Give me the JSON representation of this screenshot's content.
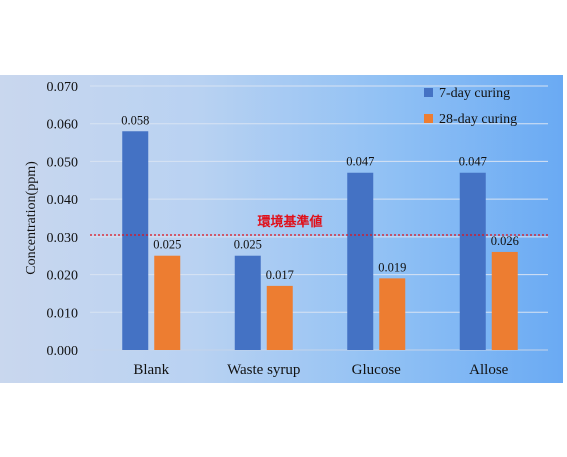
{
  "chart_data": {
    "type": "bar",
    "ylabel": "Concentration(ppm)",
    "xlabel": "",
    "ylim": [
      0,
      0.07
    ],
    "yticks": [
      "0.000",
      "0.010",
      "0.020",
      "0.030",
      "0.040",
      "0.050",
      "0.060",
      "0.070"
    ],
    "categories": [
      "Blank",
      "Waste syrup",
      "Glucose",
      "Allose"
    ],
    "series": [
      {
        "name": "7-day curing",
        "values": [
          0.058,
          0.025,
          0.047,
          0.047
        ],
        "labels": [
          "0.058",
          "0.025",
          "0.047",
          "0.047"
        ],
        "color": "#4472c4"
      },
      {
        "name": "28-day curing",
        "values": [
          0.025,
          0.017,
          0.019,
          0.026
        ],
        "labels": [
          "0.025",
          "0.017",
          "0.019",
          "0.026"
        ],
        "color": "#ed7d31"
      }
    ],
    "reference_line": {
      "value": 0.0305,
      "label": "環境基準値",
      "color": "#e0101a",
      "style": "dotted"
    },
    "grid": true,
    "legend_position": "top-right"
  }
}
